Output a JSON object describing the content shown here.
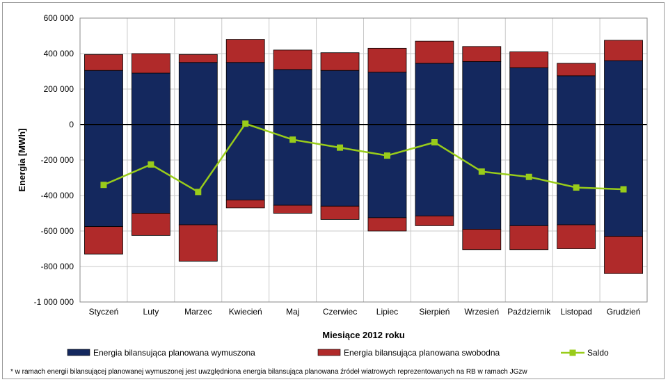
{
  "chart_data": {
    "type": "bar",
    "stacked": true,
    "ylabel": "Energia [MWh]",
    "xlabel": "Miesiące 2012 roku",
    "ylim": [
      -1000000,
      600000
    ],
    "yticks": [
      600000,
      400000,
      200000,
      0,
      -200000,
      -400000,
      -600000,
      -800000,
      -1000000
    ],
    "ytick_labels": [
      "600 000",
      "400 000",
      "200 000",
      "0",
      "-200 000",
      "-400 000",
      "-600 000",
      "-800 000",
      "-1 000 000"
    ],
    "grid": true,
    "legend_position": "bottom",
    "categories": [
      "Styczeń",
      "Luty",
      "Marzec",
      "Kwiecień",
      "Maj",
      "Czerwiec",
      "Lipiec",
      "Sierpień",
      "Wrzesień",
      "Październik",
      "Listopad",
      "Grudzień"
    ],
    "series": [
      {
        "name": "Energia bilansująca planowana wymuszona",
        "kind": "bar",
        "color": "#14285e",
        "positive": [
          305000,
          290000,
          350000,
          350000,
          310000,
          305000,
          295000,
          345000,
          355000,
          320000,
          275000,
          360000
        ],
        "negative": [
          -575000,
          -500000,
          -565000,
          -425000,
          -455000,
          -460000,
          -525000,
          -515000,
          -590000,
          -570000,
          -565000,
          -630000
        ]
      },
      {
        "name": "Energia bilansująca planowana swobodna",
        "kind": "bar",
        "color": "#b02a2a",
        "positive": [
          90000,
          110000,
          45000,
          130000,
          110000,
          100000,
          135000,
          125000,
          85000,
          90000,
          70000,
          115000
        ],
        "negative": [
          -155000,
          -125000,
          -205000,
          -45000,
          -45000,
          -75000,
          -75000,
          -55000,
          -115000,
          -135000,
          -135000,
          -210000
        ]
      },
      {
        "name": "Saldo",
        "kind": "line",
        "color": "#99cc1a",
        "values": [
          -340000,
          -225000,
          -380000,
          5000,
          -85000,
          -130000,
          -175000,
          -100000,
          -265000,
          -295000,
          -355000,
          -365000
        ]
      }
    ],
    "footnote": "* w ramach energii bilansującej planowanej wymuszonej jest uwzględniona energia bilansująca planowana źródeł wiatrowych reprezentowanych na RB w ramach JGzw"
  }
}
